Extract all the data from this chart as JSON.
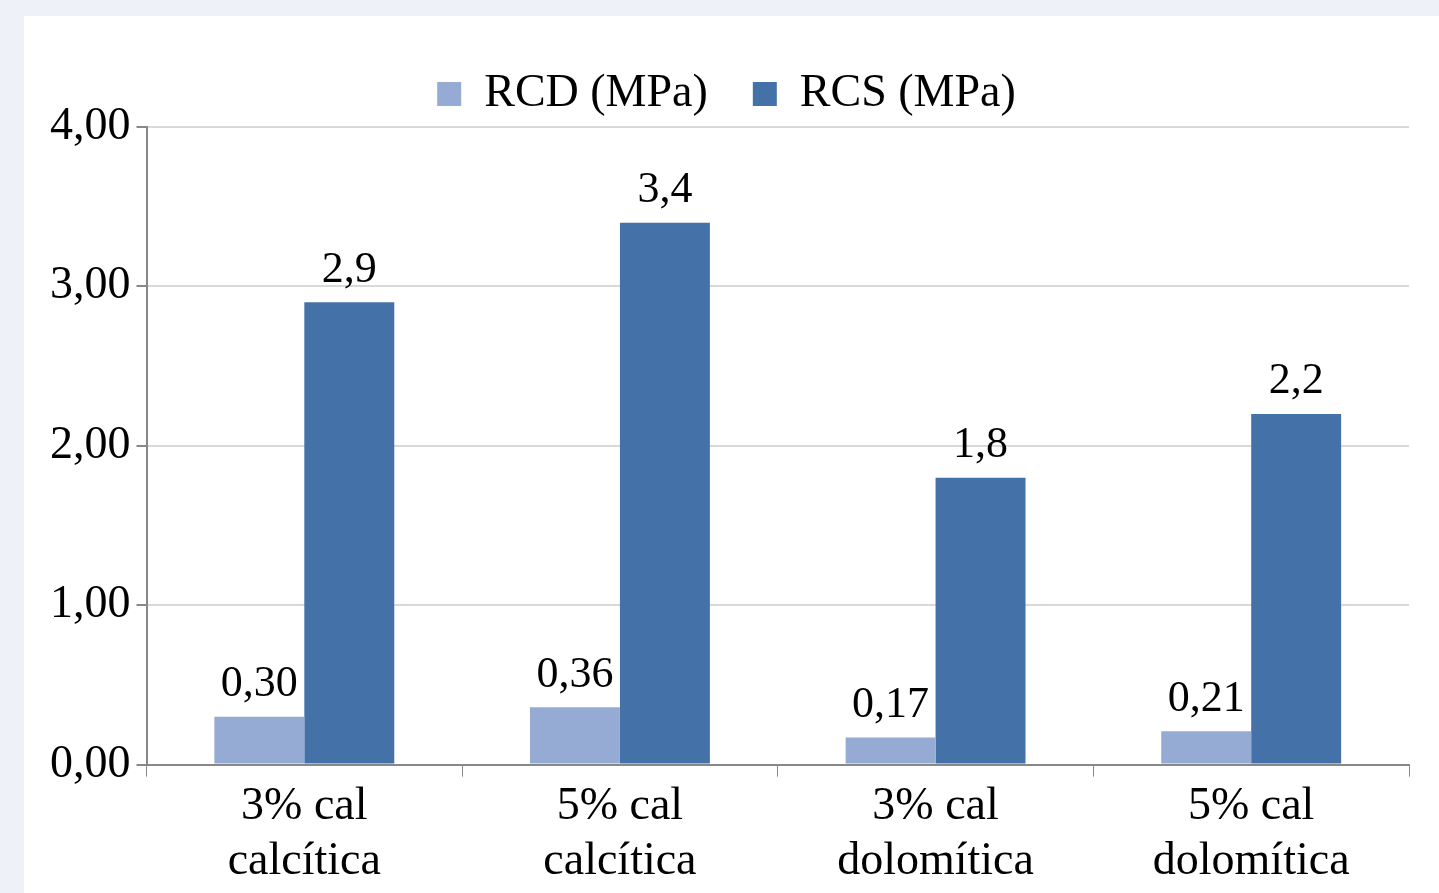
{
  "chart_data": {
    "type": "bar",
    "categories": [
      "3% cal\ncalcítica",
      "5% cal\ncalcítica",
      "3% cal\ndolomítica",
      "5% cal\ndolomítica"
    ],
    "series": [
      {
        "name": "RCD (MPa)",
        "color": "#95abd3",
        "values": [
          0.3,
          0.36,
          0.17,
          0.21
        ],
        "value_labels": [
          "0,30",
          "0,36",
          "0,17",
          "0,21"
        ]
      },
      {
        "name": "RCS (MPa)",
        "color": "#4472a8",
        "values": [
          2.9,
          3.4,
          1.8,
          2.2
        ],
        "value_labels": [
          "2,9",
          "3,4",
          "1,8",
          "2,2"
        ]
      }
    ],
    "ylim": [
      0,
      4
    ],
    "yticks": [
      {
        "value": 0,
        "label": "0,00"
      },
      {
        "value": 1,
        "label": "1,00"
      },
      {
        "value": 2,
        "label": "2,00"
      },
      {
        "value": 3,
        "label": "3,00"
      },
      {
        "value": 4,
        "label": "4,00"
      }
    ],
    "grid": "y",
    "legend": "top"
  }
}
